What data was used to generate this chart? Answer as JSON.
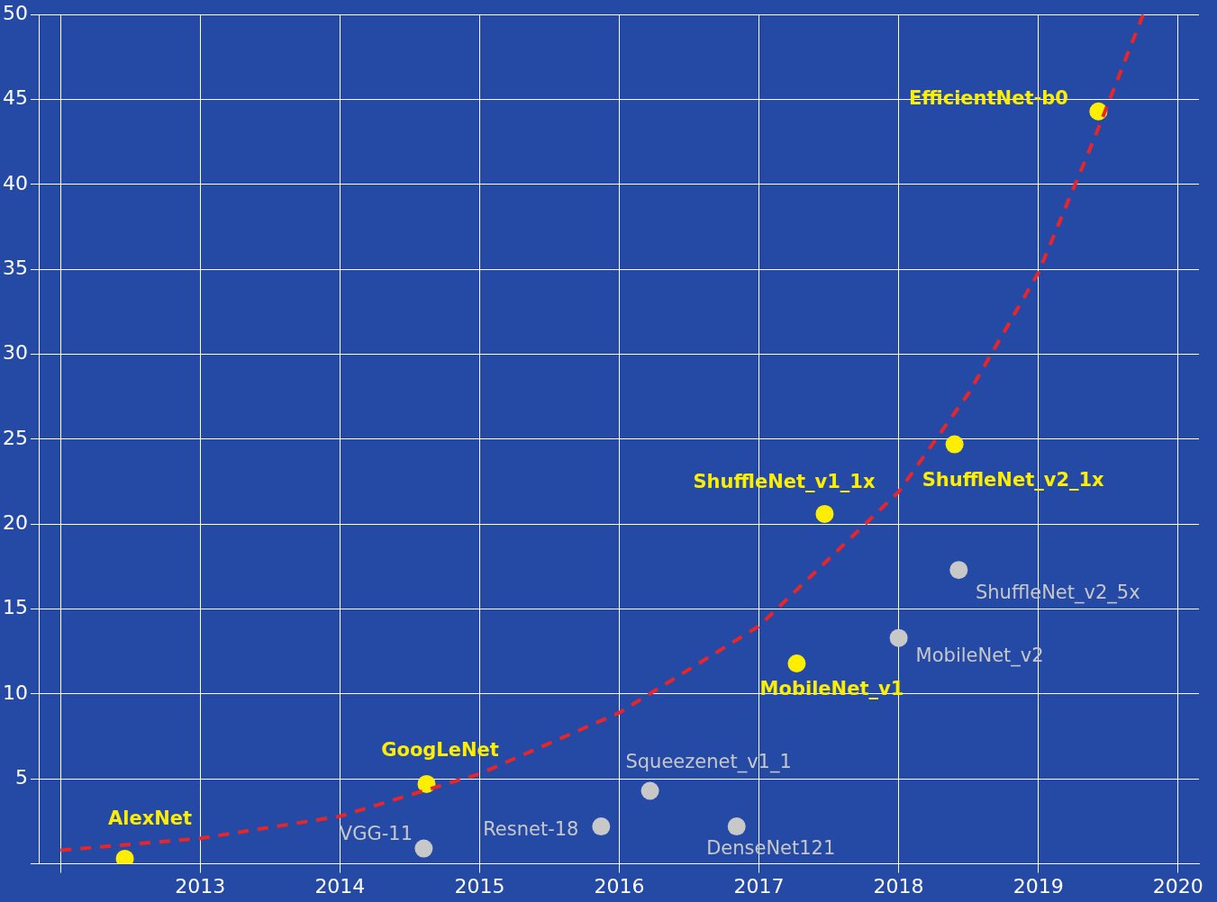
{
  "chart_data": {
    "type": "scatter",
    "grid": true,
    "legend": false,
    "xlim": [
      2011.85,
      2020.15
    ],
    "xticks": [
      {
        "value": 2012,
        "label": null
      },
      2013,
      2014,
      2015,
      2016,
      2017,
      2018,
      2019,
      2020
    ],
    "ylim": [
      0,
      50
    ],
    "yticks": [
      {
        "value": 0,
        "label": null
      },
      5,
      10,
      15,
      20,
      25,
      30,
      35,
      40,
      45,
      50
    ],
    "series": [
      {
        "type": "line",
        "color": "#e8262a",
        "line_style": "dashed",
        "marker": "none",
        "x": [
          2012.0,
          2013.0,
          2014.0,
          2015.0,
          2016.0,
          2017.0,
          2018.0,
          2018.5,
          2019.0,
          2019.41,
          2019.75
        ],
        "values": [
          0.8,
          1.5,
          2.8,
          5.3,
          8.9,
          14.0,
          21.9,
          27.7,
          34.8,
          42.9,
          50
        ]
      },
      {
        "color": "#c8c8c8",
        "marker": "circle",
        "x": [
          2014.6,
          2015.87,
          2016.22,
          2016.84,
          2018.0,
          2018.43
        ],
        "values": [
          0.9,
          2.2,
          4.3,
          2.2,
          13.3,
          17.3
        ]
      },
      {
        "color": "#ffee00",
        "marker": "circle",
        "x": [
          2012.46,
          2014.62,
          2017.27,
          2017.47,
          2018.4,
          2019.43
        ],
        "values": [
          0.3,
          4.7,
          11.8,
          20.6,
          24.7,
          44.3
        ]
      }
    ],
    "annotations": [
      {
        "text": "AlexNet",
        "x": 2012.46,
        "y": 0.3
      },
      {
        "text": "GoogLeNet",
        "x": 2014.62,
        "y": 4.7
      },
      {
        "text": "ShuffleNet_v1_1x",
        "x": 2017.47,
        "y": 20.6
      },
      {
        "text": "MobileNet_v1",
        "x": 2017.27,
        "y": 11.8
      },
      {
        "text": "ShuffleNet_v2_1x",
        "x": 2018.4,
        "y": 24.7
      },
      {
        "text": "EfficientNet-b0",
        "x": 2019.43,
        "y": 44.3
      },
      {
        "text": "VGG-11",
        "x": 2014.6,
        "y": 0.9
      },
      {
        "text": "Resnet-18",
        "x": 2015.87,
        "y": 2.2
      },
      {
        "text": "Squeezenet_v1_1",
        "x": 2016.22,
        "y": 4.3
      },
      {
        "text": "DenseNet121",
        "x": 2016.84,
        "y": 2.2
      },
      {
        "text": "MobileNet_v2",
        "x": 2018.0,
        "y": 13.3
      },
      {
        "text": "ShuffleNet_v2_5x",
        "x": 2018.43,
        "y": 17.3
      }
    ]
  }
}
